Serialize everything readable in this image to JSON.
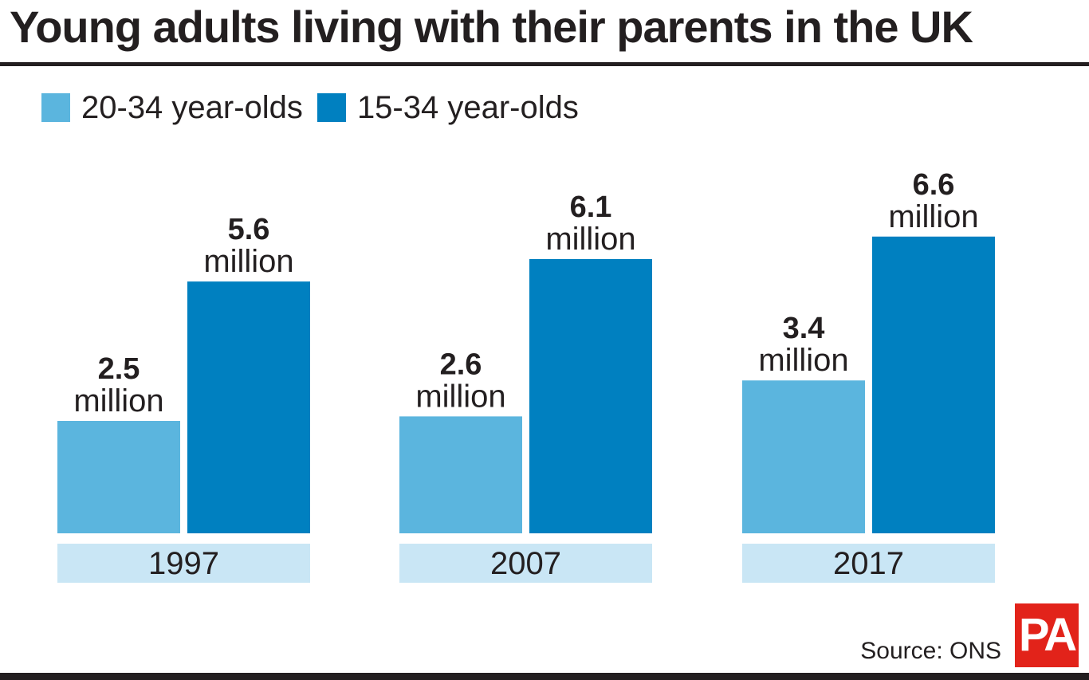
{
  "title": "Young adults living with their parents in the UK",
  "source": "Source: ONS",
  "logo_text": "PA",
  "colors": {
    "series_1": "#5bb5de",
    "series_2": "#0080c0",
    "category_band": "#c9e6f5",
    "rule": "#231f20",
    "logo_bg": "#e2231a"
  },
  "chart_data": {
    "type": "bar",
    "categories": [
      "1997",
      "2007",
      "2017"
    ],
    "series": [
      {
        "name": "20-34 year-olds",
        "values": [
          2.5,
          2.6,
          3.4
        ],
        "labels": [
          "2.5",
          "2.6",
          "3.4"
        ]
      },
      {
        "name": "15-34 year-olds",
        "values": [
          5.6,
          6.1,
          6.6
        ],
        "labels": [
          "5.6",
          "6.1",
          "6.6"
        ]
      }
    ],
    "value_unit_label": "million",
    "legend": "top-left",
    "grid": false
  }
}
